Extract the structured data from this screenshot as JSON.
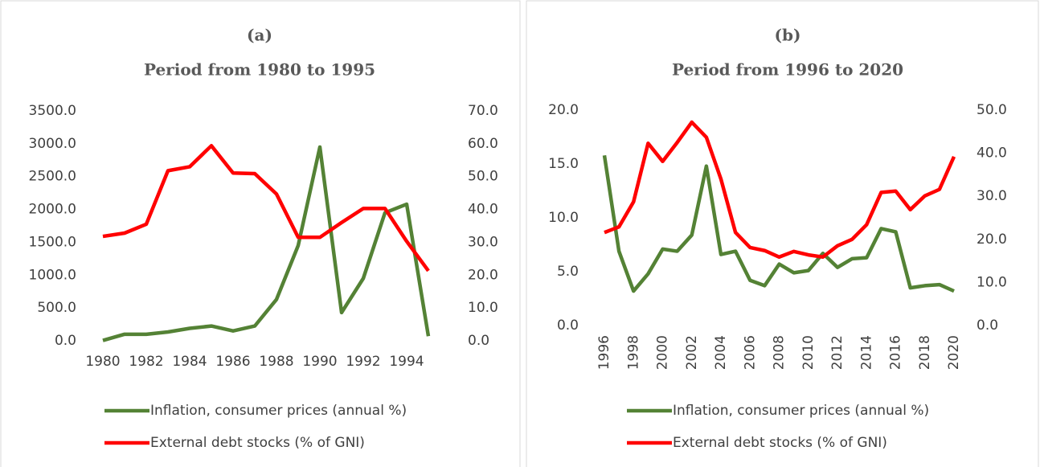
{
  "chart_data": [
    {
      "type": "line",
      "title": "(a)",
      "subtitle": "Period from 1980 to 1995",
      "x": [
        1980,
        1981,
        1982,
        1983,
        1984,
        1985,
        1986,
        1987,
        1988,
        1989,
        1990,
        1991,
        1992,
        1993,
        1994,
        1995
      ],
      "xlim": [
        1980,
        1995
      ],
      "xticks": [
        1980,
        1982,
        1984,
        1986,
        1988,
        1990,
        1992,
        1994
      ],
      "ylim": [
        0,
        3500
      ],
      "yticks": [
        {
          "value": 0,
          "label": "0.0"
        },
        {
          "value": 500,
          "label": "500.0"
        },
        {
          "value": 1000,
          "label": "1000.0"
        },
        {
          "value": 1500,
          "label": "1500.0"
        },
        {
          "value": 2000,
          "label": "2000.0"
        },
        {
          "value": 2500,
          "label": "2500.0"
        },
        {
          "value": 3000,
          "label": "3000.0"
        },
        {
          "value": 3500,
          "label": "3500.0"
        }
      ],
      "y2lim": [
        0,
        70
      ],
      "y2ticks": [
        {
          "value": 0,
          "label": "0.0"
        },
        {
          "value": 10,
          "label": "10.0"
        },
        {
          "value": 20,
          "label": "20.0"
        },
        {
          "value": 30,
          "label": "30.0"
        },
        {
          "value": 40,
          "label": "40.0"
        },
        {
          "value": 50,
          "label": "50.0"
        },
        {
          "value": 60,
          "label": "60.0"
        },
        {
          "value": 70,
          "label": "70.0"
        }
      ],
      "grid": false,
      "series": [
        {
          "name": "Inflation, consumer prices (annual %)",
          "color": "#548235",
          "values": [
            5,
            100,
            100,
            135,
            190,
            225,
            150,
            225,
            630,
            1450,
            2950,
            430,
            950,
            1950,
            2080,
            70
          ]
        },
        {
          "name": "External debt stocks (% of GNI)",
          "color": "#ff0000",
          "axis": "y2",
          "values": [
            31.8,
            32.8,
            35.5,
            51.8,
            53,
            59.4,
            51.1,
            50.9,
            44.7,
            31.5,
            31.5,
            36,
            40.3,
            40.3,
            30.3,
            21.3
          ]
        }
      ]
    },
    {
      "type": "line",
      "title": "(b)",
      "subtitle": "Period from 1996 to 2020",
      "x": [
        1996,
        1997,
        1998,
        1999,
        2000,
        2001,
        2002,
        2003,
        2004,
        2005,
        2006,
        2007,
        2008,
        2009,
        2010,
        2011,
        2012,
        2013,
        2014,
        2015,
        2016,
        2017,
        2018,
        2019,
        2020
      ],
      "xlim": [
        1996,
        2020
      ],
      "xticks": [
        1996,
        1998,
        2000,
        2002,
        2004,
        2006,
        2008,
        2010,
        2012,
        2014,
        2016,
        2018,
        2020
      ],
      "ylim": [
        0,
        20
      ],
      "yticks": [
        {
          "value": 0,
          "label": "0.0"
        },
        {
          "value": 5,
          "label": "5.0"
        },
        {
          "value": 10,
          "label": "10.0"
        },
        {
          "value": 15,
          "label": "15.0"
        },
        {
          "value": 20,
          "label": "20.0"
        }
      ],
      "y2lim": [
        0,
        50
      ],
      "y2ticks": [
        {
          "value": 0,
          "label": "0.0"
        },
        {
          "value": 10,
          "label": "10.0"
        },
        {
          "value": 20,
          "label": "20.0"
        },
        {
          "value": 30,
          "label": "30.0"
        },
        {
          "value": 40,
          "label": "40.0"
        },
        {
          "value": 50,
          "label": "50.0"
        }
      ],
      "grid": false,
      "series": [
        {
          "name": "Inflation, consumer prices (annual %)",
          "color": "#548235",
          "values": [
            15.8,
            6.9,
            3.2,
            4.8,
            7.1,
            6.9,
            8.4,
            14.8,
            6.6,
            6.9,
            4.2,
            3.7,
            5.7,
            4.9,
            5.1,
            6.7,
            5.4,
            6.2,
            6.3,
            9.0,
            8.7,
            3.5,
            3.7,
            3.8,
            3.2
          ]
        },
        {
          "name": "External debt stocks (% of GNI)",
          "color": "#ff0000",
          "axis": "y2",
          "values": [
            21.6,
            22.9,
            28.7,
            42.3,
            38.1,
            42.5,
            47.2,
            43.7,
            34,
            21.6,
            18.1,
            17.4,
            15.9,
            17.2,
            16.4,
            15.9,
            18.5,
            20,
            23.4,
            30.9,
            31.2,
            26.9,
            30.1,
            31.6,
            39.2
          ]
        }
      ]
    }
  ]
}
